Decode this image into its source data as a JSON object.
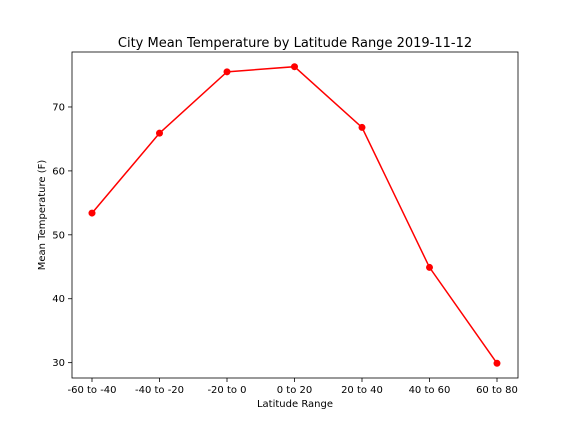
{
  "chart_data": {
    "type": "line",
    "title": "City Mean Temperature by Latitude Range  2019-11-12",
    "xlabel": "Latitude Range",
    "ylabel": "Mean Temperature (F)",
    "categories": [
      "-60 to -40",
      "-40 to -20",
      "-20 to 0",
      "0 to 20",
      "20 to 40",
      "40 to 60",
      "60 to 80"
    ],
    "series": [
      {
        "values": [
          53.4,
          65.9,
          75.5,
          76.3,
          66.8,
          44.9,
          29.9
        ],
        "color": "#ff0000",
        "marker": "circle"
      }
    ],
    "yticks": [
      30,
      40,
      50,
      60,
      70
    ],
    "ylim": [
      27.6,
      78.6
    ],
    "grid": false
  }
}
